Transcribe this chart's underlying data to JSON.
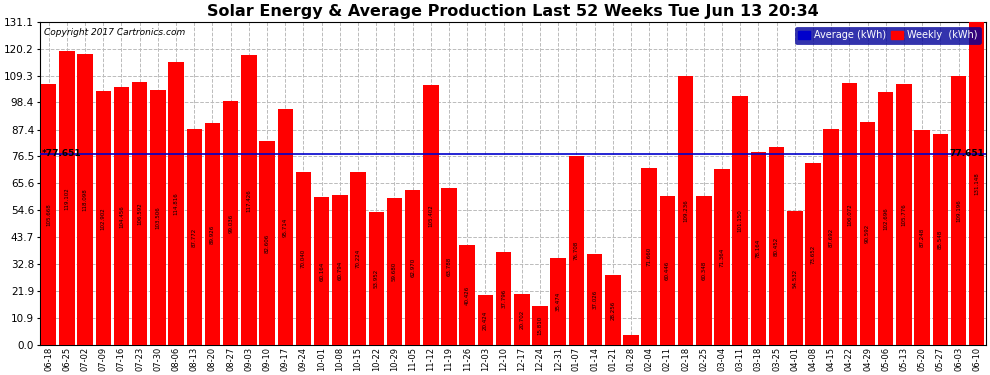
{
  "title": "Solar Energy & Average Production Last 52 Weeks Tue Jun 13 20:34",
  "copyright": "Copyright 2017 Cartronics.com",
  "average_line": 77.651,
  "ylim": [
    0,
    131.1
  ],
  "yticks": [
    0.0,
    10.9,
    21.9,
    32.8,
    43.7,
    54.6,
    65.6,
    76.5,
    87.4,
    98.4,
    109.3,
    120.2,
    131.1
  ],
  "bar_color": "#FF0000",
  "avg_line_color": "#0000CC",
  "background_color": "#FFFFFF",
  "plot_bg_color": "#FFFFFF",
  "grid_color": "#BBBBBB",
  "categories": [
    "06-18",
    "06-25",
    "07-02",
    "07-09",
    "07-16",
    "07-23",
    "07-30",
    "08-06",
    "08-13",
    "08-20",
    "08-27",
    "09-03",
    "09-10",
    "09-17",
    "09-24",
    "10-01",
    "10-08",
    "10-15",
    "10-22",
    "10-29",
    "11-05",
    "11-12",
    "11-19",
    "11-26",
    "12-03",
    "12-10",
    "12-17",
    "12-24",
    "12-31",
    "01-07",
    "01-14",
    "01-21",
    "01-28",
    "02-04",
    "02-11",
    "02-18",
    "02-25",
    "03-04",
    "03-11",
    "03-18",
    "03-25",
    "04-01",
    "04-08",
    "04-15",
    "04-22",
    "04-29",
    "05-06",
    "05-13",
    "05-20",
    "05-27",
    "06-03",
    "06-10"
  ],
  "values": [
    105.668,
    119.102,
    118.098,
    102.902,
    104.456,
    106.592,
    103.506,
    114.816,
    87.772,
    89.926,
    99.036,
    117.426,
    82.606,
    95.714,
    70.04,
    60.164,
    60.794,
    70.224,
    53.952,
    59.68,
    62.97,
    105.402,
    63.788,
    40.426,
    20.424,
    37.796,
    20.702,
    15.81,
    35.474,
    76.708,
    37.026,
    28.256,
    4.312,
    71.66,
    60.446,
    109.236,
    60.348,
    71.364,
    101.15,
    78.164,
    80.452,
    54.532,
    73.652,
    87.692,
    106.072,
    90.592,
    102.696,
    105.776,
    87.248,
    85.548,
    109.196,
    131.148
  ],
  "legend_avg_color": "#0000CC",
  "legend_weekly_color": "#FF0000",
  "avg_label": "Average (kWh)",
  "weekly_label": "Weekly  (kWh)"
}
